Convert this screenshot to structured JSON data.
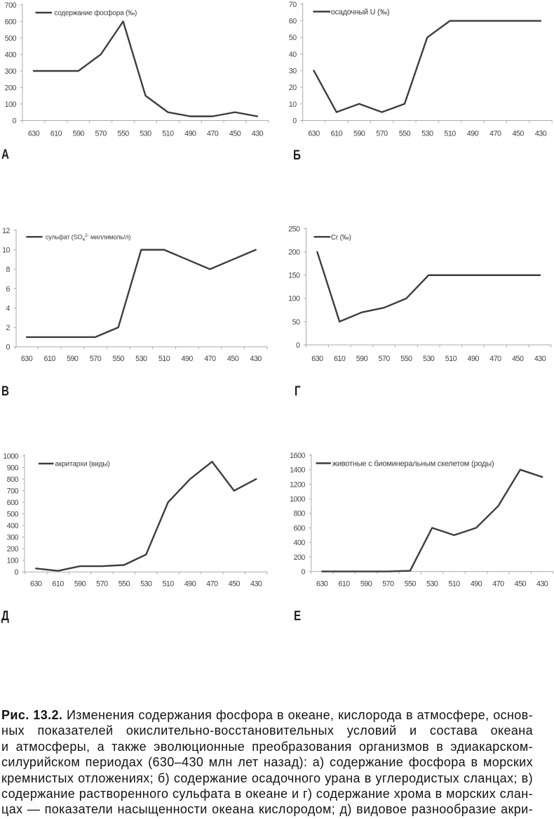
{
  "figure": {
    "caption": {
      "label": "Рис. 13.2.",
      "lines": [
        "Изменения содержания фосфора в океане, кислорода в атмосфере, основ-",
        "ных показателей окислительно-восстановительных условий и состава океана",
        "и атмосферы, а также эволюционные преобразования организмов в эдиакарском-",
        "силурийском периодах (630–430 млн лет назад): а) содержание фосфора в морских",
        "кремнистых отложениях; б) содержание осадочного урана в углеродистых сланцах; в)",
        "содержание растворенного сульфата в океане и г) содержание хрома в морских слан-",
        "цах — показатели насыщенности океана кислородом; д) видовое разнообразие акри-"
      ]
    }
  },
  "colors": {
    "series_line": "#3d3d3d",
    "axis_line": "#ababab",
    "tick_text": "#424242",
    "caption_text": "#131313"
  },
  "chart_data": [
    {
      "type": "line",
      "panel_label": "А",
      "legend": "содержание фосфора (‰)",
      "categories": [
        630,
        610,
        590,
        570,
        550,
        530,
        510,
        490,
        470,
        450,
        430
      ],
      "values": [
        300,
        300,
        300,
        400,
        600,
        150,
        50,
        25,
        25,
        50,
        25
      ],
      "xlabel": "",
      "ylabel": "",
      "ylim": [
        0,
        700
      ],
      "ytick_step": 100,
      "grid": false,
      "legend_position": "top-left"
    },
    {
      "type": "line",
      "panel_label": "Б",
      "legend": "осадочный U (‰)",
      "categories": [
        630,
        610,
        590,
        570,
        550,
        530,
        510,
        490,
        470,
        450,
        430
      ],
      "values": [
        30,
        5,
        10,
        5,
        10,
        50,
        60,
        60,
        60,
        60,
        60
      ],
      "xlabel": "",
      "ylabel": "",
      "ylim": [
        0,
        70
      ],
      "ytick_step": 10,
      "grid": false,
      "legend_position": "top-left"
    },
    {
      "type": "line",
      "panel_label": "В",
      "legend": "сульфат (SO42- миллимоль/л)",
      "legend_segments": [
        {
          "text": "сульфат (SO"
        },
        {
          "text": "4",
          "style": "sub"
        },
        {
          "text": "2-",
          "style": "sup"
        },
        {
          "text": " миллимоль/л)"
        }
      ],
      "categories": [
        630,
        610,
        590,
        570,
        550,
        530,
        510,
        490,
        470,
        450,
        430
      ],
      "values": [
        1,
        1,
        1,
        1,
        2,
        10,
        10,
        9,
        8,
        9,
        10
      ],
      "xlabel": "",
      "ylabel": "",
      "ylim": [
        0,
        12
      ],
      "ytick_step": 2,
      "grid": false,
      "legend_position": "top-left"
    },
    {
      "type": "line",
      "panel_label": "Г",
      "legend": "Cr (‰)",
      "categories": [
        630,
        610,
        590,
        570,
        550,
        530,
        510,
        490,
        470,
        450,
        430
      ],
      "values": [
        200,
        50,
        70,
        80,
        100,
        150,
        150,
        150,
        150,
        150,
        150
      ],
      "xlabel": "",
      "ylabel": "",
      "ylim": [
        0,
        250
      ],
      "ytick_step": 50,
      "grid": false,
      "legend_position": "top-left"
    },
    {
      "type": "line",
      "panel_label": "Д",
      "legend": "акритархи (виды)",
      "categories": [
        630,
        610,
        590,
        570,
        550,
        530,
        510,
        490,
        470,
        450,
        430
      ],
      "values": [
        30,
        10,
        50,
        50,
        60,
        150,
        600,
        800,
        950,
        700,
        800
      ],
      "xlabel": "",
      "ylabel": "",
      "ylim": [
        0,
        1000
      ],
      "ytick_step": 100,
      "grid": false,
      "legend_position": "top-left"
    },
    {
      "type": "line",
      "panel_label": "Е",
      "legend": "животные с биоминеральным скелетом (роды)",
      "categories": [
        630,
        610,
        590,
        570,
        550,
        530,
        510,
        490,
        470,
        450,
        430
      ],
      "values": [
        0,
        0,
        0,
        0,
        10,
        600,
        500,
        600,
        900,
        1400,
        1300
      ],
      "xlabel": "",
      "ylabel": "",
      "ylim": [
        0,
        1600
      ],
      "ytick_step": 200,
      "grid": false,
      "legend_position": "top-left"
    }
  ]
}
